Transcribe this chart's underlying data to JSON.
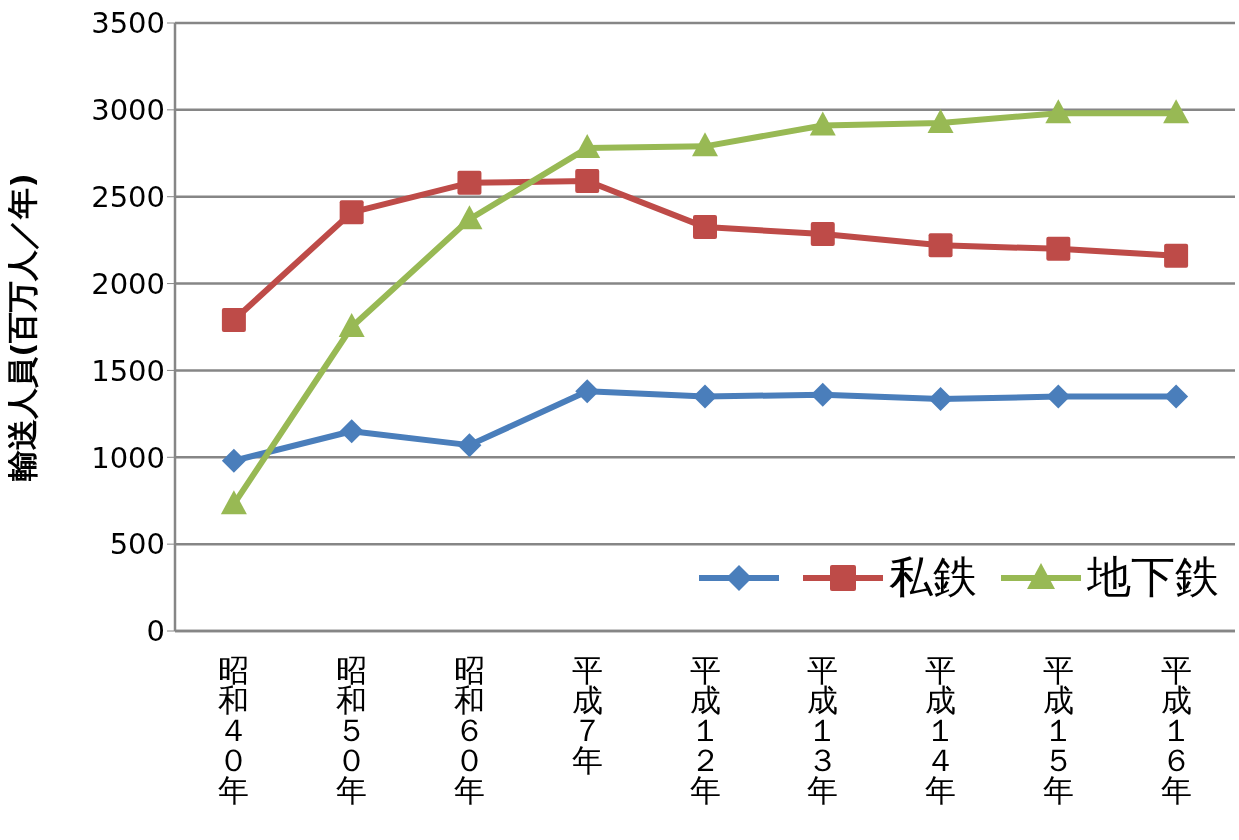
{
  "chart_data": {
    "type": "line",
    "ylabel": "輸送人員(百万人／年)",
    "categories": [
      "昭和４０年",
      "昭和５０年",
      "昭和６０年",
      "平成７年",
      "平成１２年",
      "平成１３年",
      "平成１４年",
      "平成１５年",
      "平成１６年"
    ],
    "series": [
      {
        "color": "#4a7ebb",
        "marker": "diamond",
        "values": [
          980,
          1150,
          1070,
          1380,
          1350,
          1360,
          1335,
          1350,
          1350
        ]
      },
      {
        "name": "私鉄",
        "color": "#be4b48",
        "marker": "square",
        "values": [
          1790,
          2410,
          2580,
          2590,
          2325,
          2285,
          2220,
          2200,
          2160
        ]
      },
      {
        "name": "地下鉄",
        "color": "#98b954",
        "marker": "triangle",
        "values": [
          730,
          1750,
          2370,
          2780,
          2790,
          2910,
          2925,
          2980,
          2980
        ]
      }
    ],
    "ylim": [
      0,
      3500
    ],
    "yticks": [
      0,
      500,
      1000,
      1500,
      2000,
      2500,
      3000,
      3500
    ],
    "grid": "y",
    "legend": "bottom right"
  }
}
